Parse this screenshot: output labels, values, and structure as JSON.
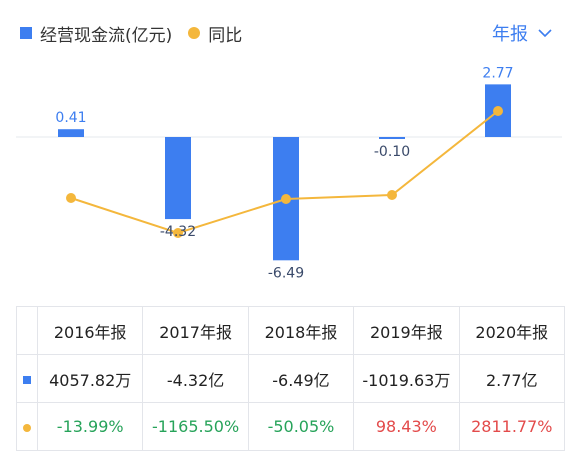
{
  "legend": {
    "bar_label": "经营现金流(亿元)",
    "line_label": "同比"
  },
  "period_selector": "年报",
  "colors": {
    "bar": "#3d7ef0",
    "line": "#f4b73c",
    "negative": "#27a35a",
    "positive": "#e34b4b"
  },
  "chart_data": {
    "type": "bar",
    "categories": [
      "2016年报",
      "2017年报",
      "2018年报",
      "2019年报",
      "2020年报"
    ],
    "series": [
      {
        "name": "经营现金流(亿元)",
        "type": "bar",
        "values": [
          0.41,
          -4.32,
          -6.49,
          -0.1,
          2.77
        ],
        "labels": [
          "0.41",
          "-4.32",
          "-6.49",
          "-0.10",
          "2.77"
        ]
      },
      {
        "name": "同比",
        "type": "line",
        "values": [
          -13.99,
          -1165.5,
          -50.05,
          98.43,
          2811.77
        ]
      }
    ],
    "title": "",
    "xlabel": "",
    "ylabel": ""
  },
  "table": {
    "headers": [
      "2016年报",
      "2017年报",
      "2018年报",
      "2019年报",
      "2020年报"
    ],
    "cash_flow": [
      "4057.82万",
      "-4.32亿",
      "-6.49亿",
      "-1019.63万",
      "2.77亿"
    ],
    "yoy": [
      {
        "text": "-13.99%",
        "sign": "neg"
      },
      {
        "text": "-1165.50%",
        "sign": "neg"
      },
      {
        "text": "-50.05%",
        "sign": "neg"
      },
      {
        "text": "98.43%",
        "sign": "pos"
      },
      {
        "text": "2811.77%",
        "sign": "pos"
      }
    ]
  }
}
